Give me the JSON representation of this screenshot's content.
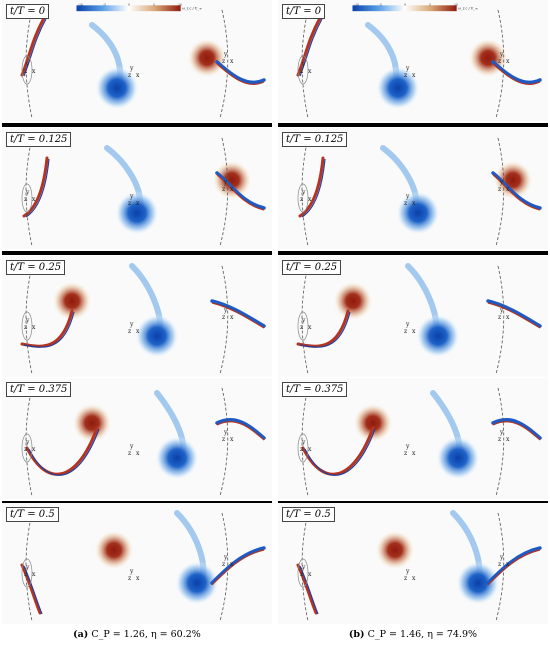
{
  "figure": {
    "columns": [
      {
        "id": "a",
        "caption_tag": "(a)",
        "caption_text": "C_P = 1.26, η = 60.2%",
        "panels": [
          {
            "time_label": "t/T = 0"
          },
          {
            "time_label": "t/T = 0.125"
          },
          {
            "time_label": "t/T = 0.25"
          },
          {
            "time_label": "t/T = 0.375"
          },
          {
            "time_label": "t/T = 0.5"
          }
        ]
      },
      {
        "id": "b",
        "caption_tag": "(b)",
        "caption_text": "C_P = 1.46, η = 74.9%",
        "panels": [
          {
            "time_label": "t/T = 0"
          },
          {
            "time_label": "t/T = 0.125"
          },
          {
            "time_label": "t/T = 0.25"
          },
          {
            "time_label": "t/T = 0.375"
          },
          {
            "time_label": "t/T = 0.5"
          }
        ]
      }
    ],
    "colorbar": {
      "ticks": [
        "-10",
        "-5",
        "0",
        "5",
        "10"
      ],
      "label": "ω_z c / U_∞",
      "colors": {
        "negative": "#1e63c8",
        "zero": "#ffffff",
        "positive": "#a3301c"
      }
    },
    "axis_labels": {
      "y": "y",
      "z": "z",
      "x": "x"
    }
  }
}
